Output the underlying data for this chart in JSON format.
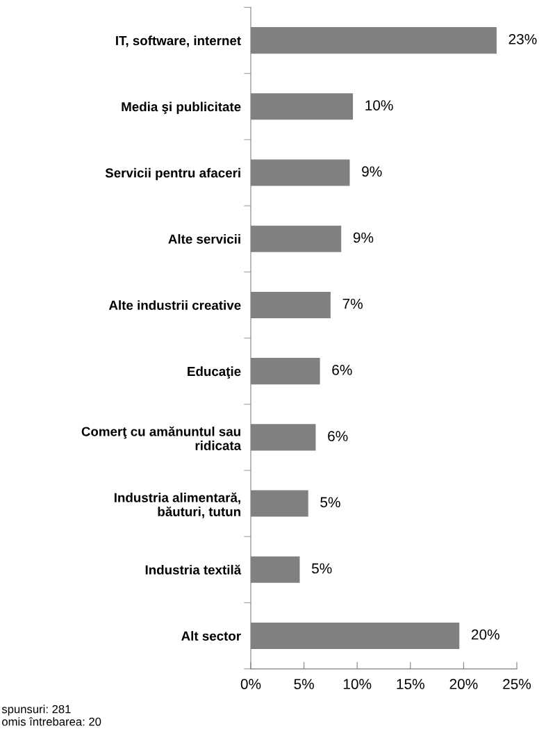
{
  "chart_data": {
    "type": "bar",
    "orientation": "horizontal",
    "categories": [
      "IT, software, internet",
      "Media şi publicitate",
      "Servicii pentru afaceri",
      "Alte servicii",
      "Alte industrii creative",
      "Educaţie",
      "Comerţ cu amănuntul sau\nridicata",
      "Industria alimentară,\nbăuturi, tutun",
      "Industria textilă",
      "Alt sector"
    ],
    "values": [
      23.1,
      9.6,
      9.3,
      8.5,
      7.5,
      6.5,
      6.1,
      5.4,
      4.6,
      19.6
    ],
    "value_labels": [
      "23%",
      "10%",
      "9%",
      "9%",
      "7%",
      "6%",
      "6%",
      "5%",
      "5%",
      "20%"
    ],
    "color": "#808080",
    "xlim": [
      0,
      25
    ],
    "xticks": [
      {
        "value": 0,
        "label": "0%"
      },
      {
        "value": 5,
        "label": "5%"
      },
      {
        "value": 10,
        "label": "10%"
      },
      {
        "value": 15,
        "label": "15%"
      },
      {
        "value": 20,
        "label": "20%"
      },
      {
        "value": 25,
        "label": "25%"
      }
    ],
    "grid": false,
    "legend": false,
    "annotations": [
      "spunsuri: 281",
      "omis întrebarea: 20"
    ]
  }
}
